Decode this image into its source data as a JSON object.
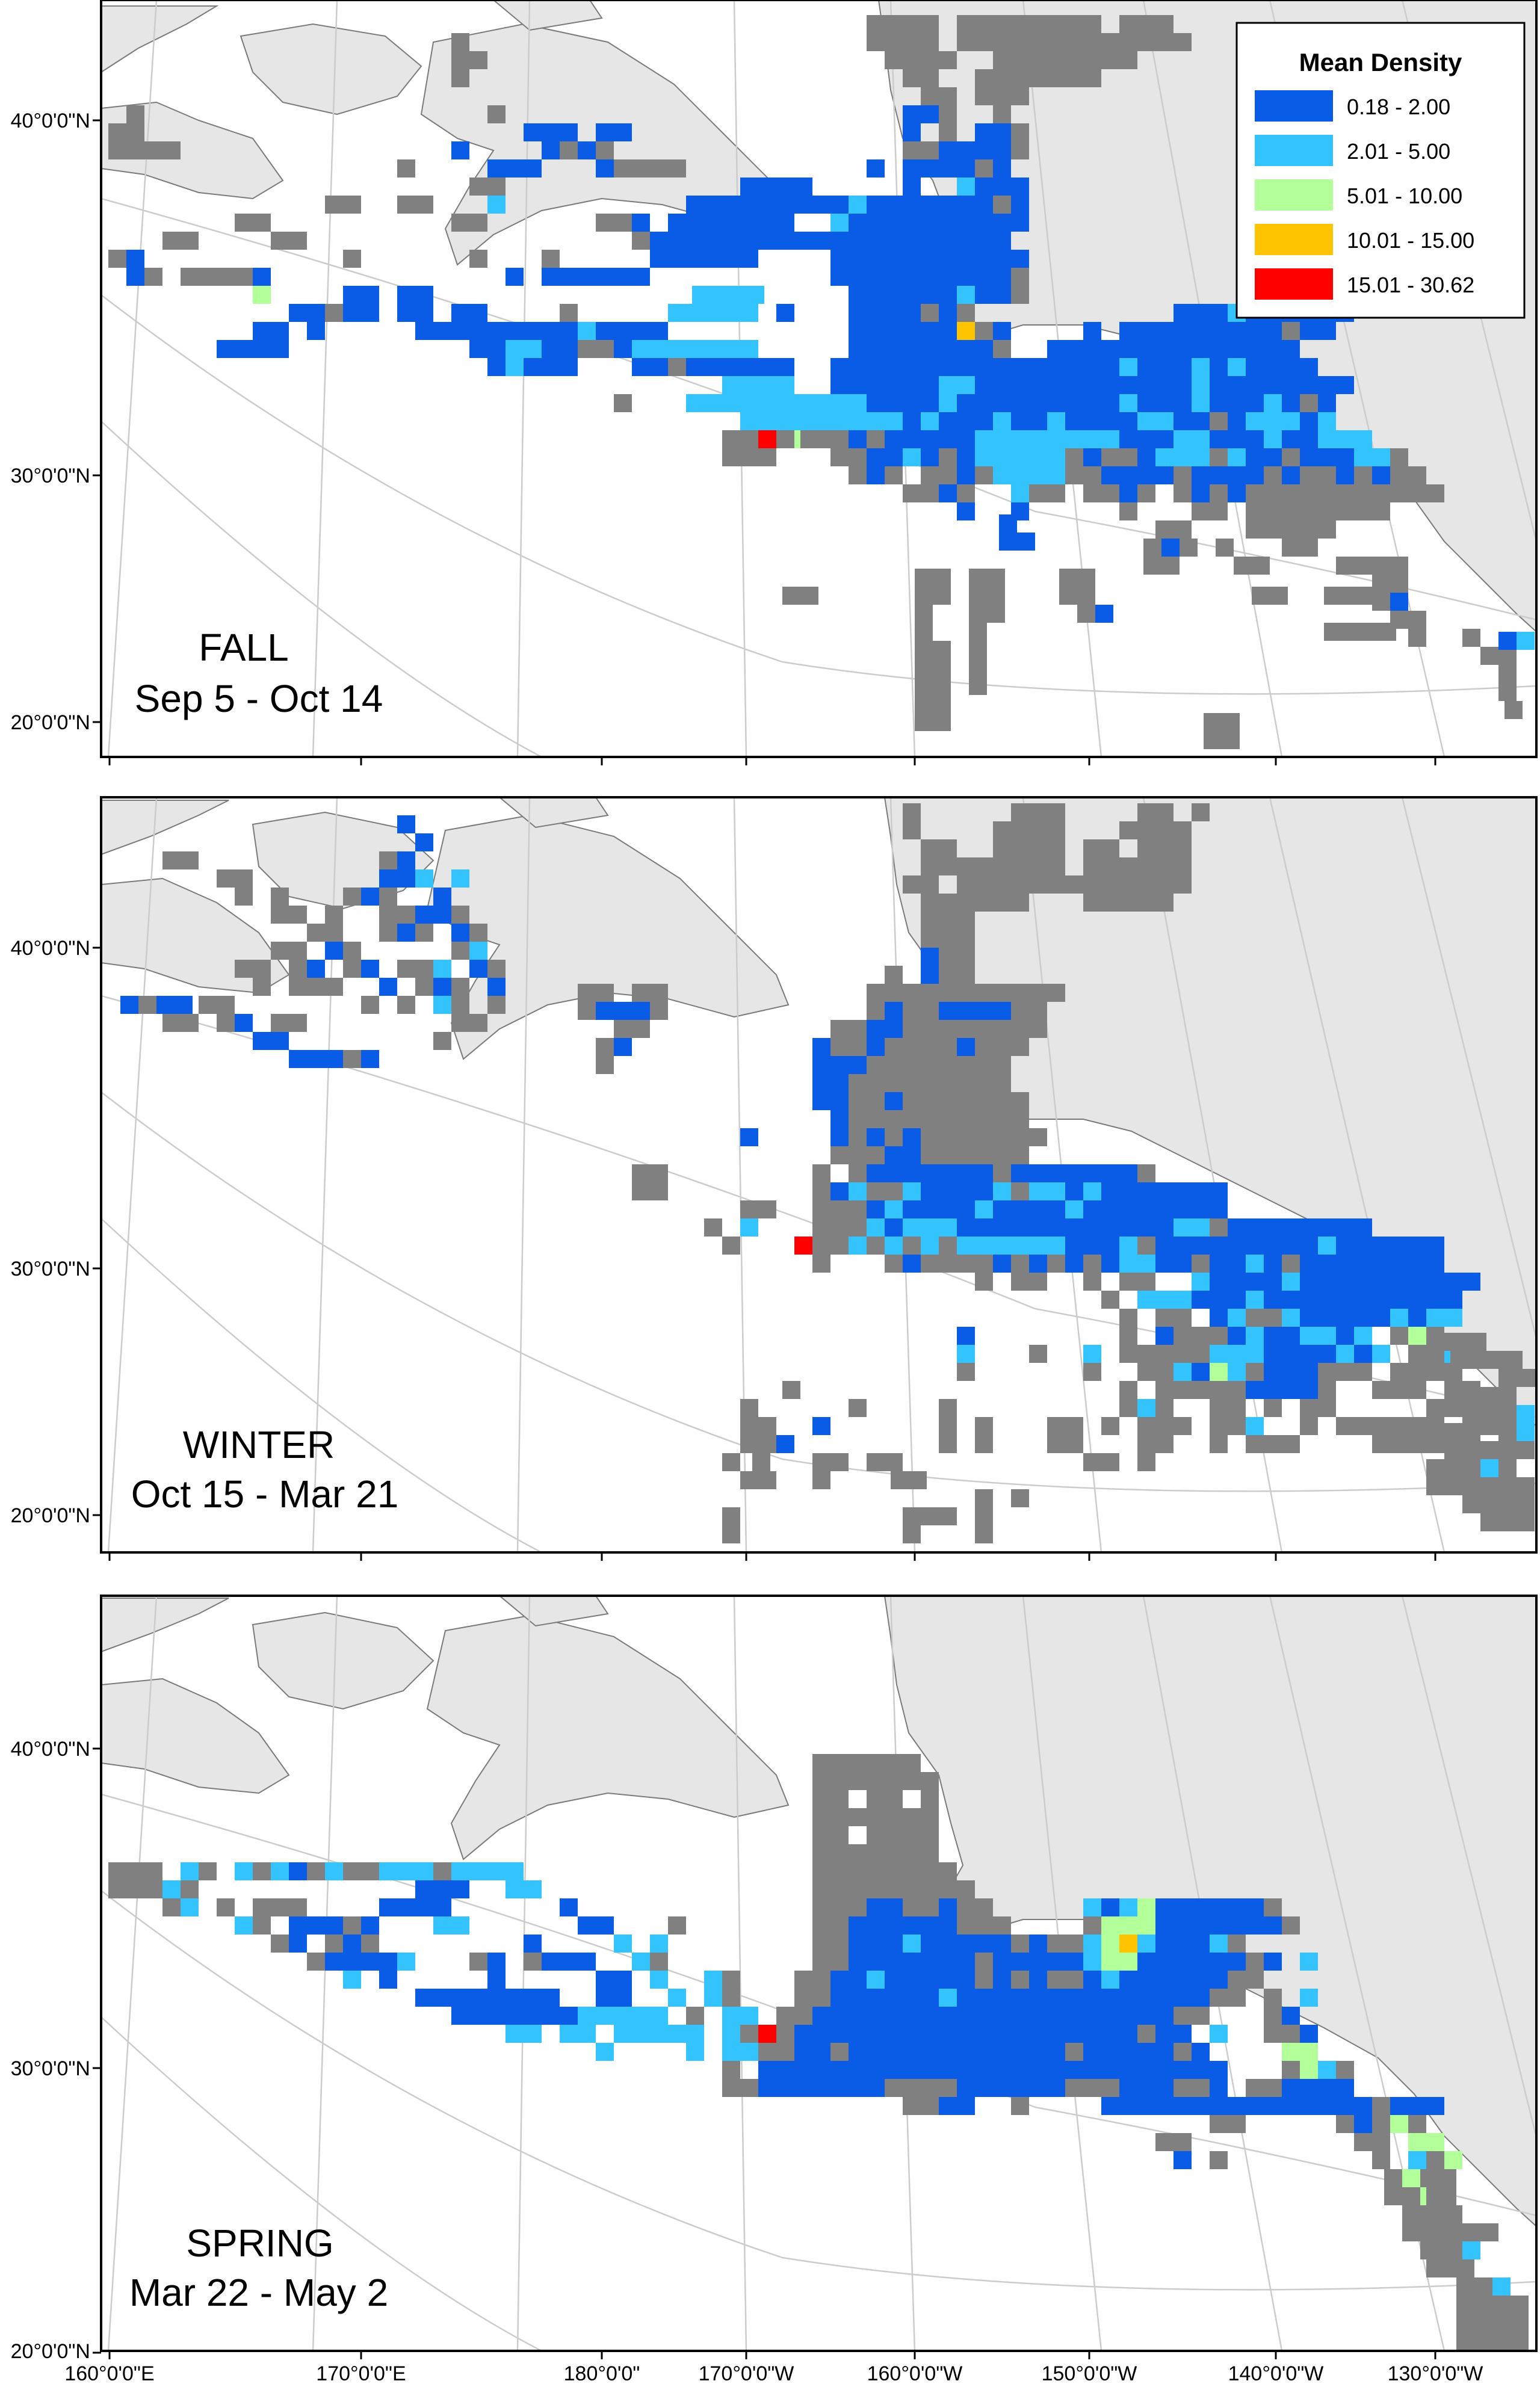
{
  "legend": {
    "title": "Mean Density",
    "classes": [
      {
        "label": "0.18 - 2.00",
        "color": "#0a5ce6"
      },
      {
        "label": "2.01 - 5.00",
        "color": "#33c4ff"
      },
      {
        "label": "5.01 - 10.00",
        "color": "#b3ff99"
      },
      {
        "label": "10.01 - 15.00",
        "color": "#ffc400"
      },
      {
        "label": "15.01 - 30.62",
        "color": "#ff0000"
      }
    ]
  },
  "no_data_color": "#808080",
  "land_color": "#e6e6e6",
  "graticule_color": "#cccccc",
  "panels": [
    {
      "season": "FALL",
      "dates": "Sep 5 - Oct 14"
    },
    {
      "season": "WINTER",
      "dates": "Oct 15 - Mar 21"
    },
    {
      "season": "SPRING",
      "dates": "Mar 22 - May 2"
    }
  ],
  "lat_labels": [
    "40°0'0\"N",
    "30°0'0\"N",
    "20°0'0\"N"
  ],
  "lon_labels": [
    "160°0'0\"E",
    "170°0'0\"E",
    "180°0'0\"",
    "170°0'0\"W",
    "160°0'0\"W",
    "150°0'0\"W",
    "140°0'0\"W",
    "130°0'0\"W"
  ]
}
